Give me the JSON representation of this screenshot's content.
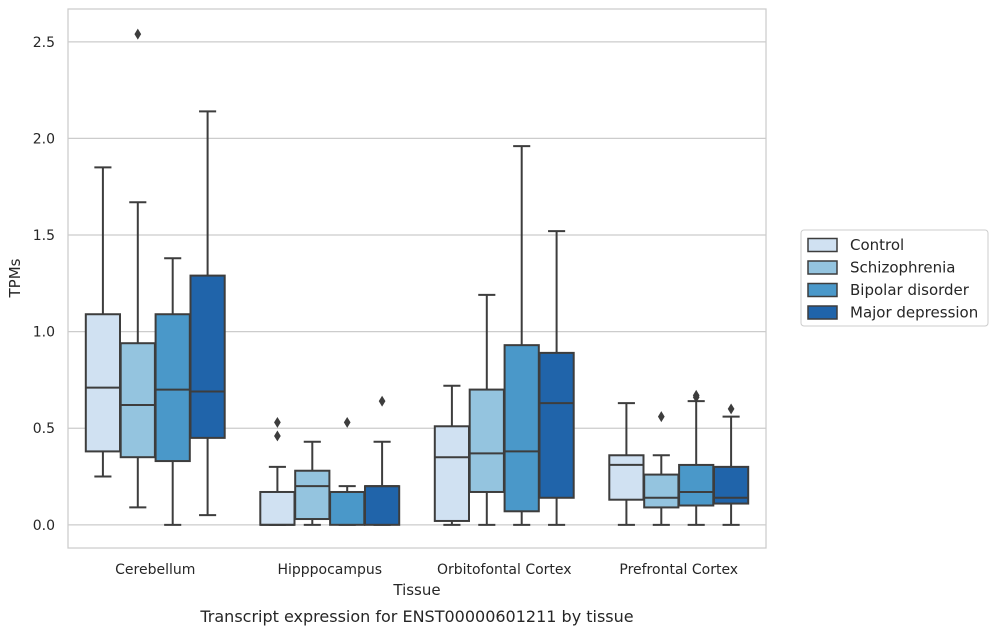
{
  "chart_data": {
    "type": "box",
    "title": "",
    "caption": "Transcript expression for ENST00000601211 by tissue",
    "xlabel": "Tissue",
    "ylabel": "TPMs",
    "ylim": [
      -0.12,
      2.67
    ],
    "yticks": [
      0.0,
      0.5,
      1.0,
      1.5,
      2.0,
      2.5
    ],
    "ytick_labels": [
      "0.0",
      "0.5",
      "1.0",
      "1.5",
      "2.0",
      "2.5"
    ],
    "grid": "horizontal",
    "legend_position": "right",
    "categories": [
      "Cerebellum",
      "Hipppocampus",
      "Orbitofontal Cortex",
      "Prefrontal Cortex"
    ],
    "series": [
      {
        "name": "Control",
        "color": "#d0e1f2",
        "boxes": [
          {
            "whislo": 0.25,
            "q1": 0.38,
            "med": 0.71,
            "q3": 1.09,
            "whishi": 1.85,
            "fliers": []
          },
          {
            "whislo": 0.0,
            "q1": 0.0,
            "med": 0.0,
            "q3": 0.17,
            "whishi": 0.3,
            "fliers": [
              0.46,
              0.53
            ]
          },
          {
            "whislo": 0.0,
            "q1": 0.02,
            "med": 0.35,
            "q3": 0.51,
            "whishi": 0.72,
            "fliers": []
          },
          {
            "whislo": 0.0,
            "q1": 0.13,
            "med": 0.31,
            "q3": 0.36,
            "whishi": 0.63,
            "fliers": []
          }
        ]
      },
      {
        "name": "Schizophrenia",
        "color": "#94c4df",
        "boxes": [
          {
            "whislo": 0.09,
            "q1": 0.35,
            "med": 0.62,
            "q3": 0.94,
            "whishi": 1.67,
            "fliers": [
              2.54
            ]
          },
          {
            "whislo": 0.0,
            "q1": 0.03,
            "med": 0.2,
            "q3": 0.28,
            "whishi": 0.43,
            "fliers": []
          },
          {
            "whislo": 0.0,
            "q1": 0.17,
            "med": 0.37,
            "q3": 0.7,
            "whishi": 1.19,
            "fliers": []
          },
          {
            "whislo": 0.0,
            "q1": 0.09,
            "med": 0.14,
            "q3": 0.26,
            "whishi": 0.36,
            "fliers": [
              0.56
            ]
          }
        ]
      },
      {
        "name": "Bipolar disorder",
        "color": "#4a98c9",
        "boxes": [
          {
            "whislo": 0.0,
            "q1": 0.33,
            "med": 0.7,
            "q3": 1.09,
            "whishi": 1.38,
            "fliers": []
          },
          {
            "whislo": 0.0,
            "q1": 0.0,
            "med": 0.17,
            "q3": 0.17,
            "whishi": 0.2,
            "fliers": [
              0.53
            ]
          },
          {
            "whislo": 0.0,
            "q1": 0.07,
            "med": 0.38,
            "q3": 0.93,
            "whishi": 1.96,
            "fliers": []
          },
          {
            "whislo": 0.0,
            "q1": 0.1,
            "med": 0.17,
            "q3": 0.31,
            "whishi": 0.64,
            "fliers": [
              0.66,
              0.67
            ]
          }
        ]
      },
      {
        "name": "Major depression",
        "color": "#2064aa",
        "boxes": [
          {
            "whislo": 0.05,
            "q1": 0.45,
            "med": 0.69,
            "q3": 1.29,
            "whishi": 2.14,
            "fliers": []
          },
          {
            "whislo": 0.0,
            "q1": 0.0,
            "med": 0.2,
            "q3": 0.2,
            "whishi": 0.43,
            "fliers": [
              0.64
            ]
          },
          {
            "whislo": 0.0,
            "q1": 0.14,
            "med": 0.63,
            "q3": 0.89,
            "whishi": 1.52,
            "fliers": []
          },
          {
            "whislo": 0.0,
            "q1": 0.11,
            "med": 0.14,
            "q3": 0.3,
            "whishi": 0.56,
            "fliers": [
              0.6
            ]
          }
        ]
      }
    ]
  }
}
